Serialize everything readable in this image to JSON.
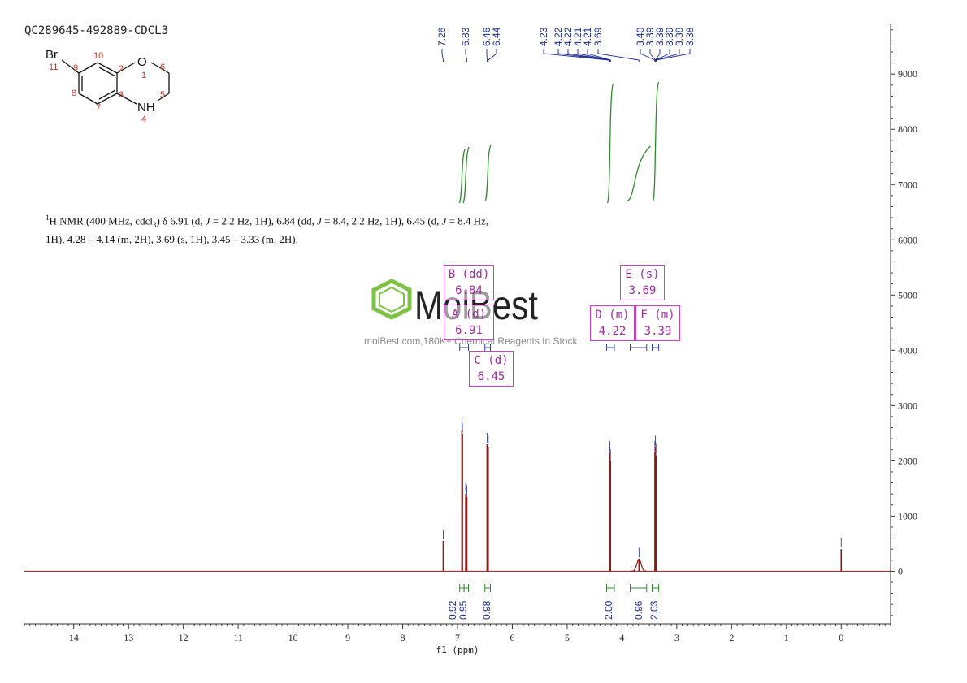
{
  "sample_id": "QC289645-492889-CDCL3",
  "nmr_summary": {
    "lead": "H NMR (400 MHz, cdcl",
    "sup": "1",
    "sub": "3",
    "text_a": ") δ 6.91 (d, ",
    "j1": "J",
    "text_b": " = 2.2 Hz, 1H), 6.84 (dd, ",
    "j2": "J",
    "text_c": " = 8.4, 2.2 Hz, 1H), 6.45 (d, ",
    "j3": "J",
    "text_d": " = 8.4 Hz, 1H), 4.28 – 4.14 (m, 2H), 3.69 (s, 1H), 3.45 – 3.33 (m, 2H)."
  },
  "watermark": {
    "brand": "MolBest",
    "tagline": "molBest.com,180K+ Chemical Reagents In Stock."
  },
  "structure": {
    "atoms": [
      "Br",
      "O",
      "NH"
    ],
    "numbers": [
      "1",
      "2",
      "3",
      "4",
      "5",
      "6",
      "7",
      "8",
      "9",
      "10",
      "11"
    ]
  },
  "multiplet_boxes": [
    {
      "label": "B (dd)",
      "value": "6.84"
    },
    {
      "label": "A (d)",
      "value": "6.91"
    },
    {
      "label": "C (d)",
      "value": "6.45"
    },
    {
      "label": "D (m)",
      "value": "4.22"
    },
    {
      "label": "E (s)",
      "value": "3.69"
    },
    {
      "label": "F (m)",
      "value": "3.39"
    }
  ],
  "colors": {
    "spectrum": "#8b1a1a",
    "peak_labels": "#1a2a8a",
    "integrals": "#2e8b2e",
    "boxes": "#d13ad1",
    "axis": "#333333",
    "watermark": "#7dc242"
  },
  "chart_data": {
    "type": "line",
    "xlabel": "f1 (ppm)",
    "x_ticks": [
      14,
      13,
      12,
      11,
      10,
      9,
      8,
      7,
      6,
      5,
      4,
      3,
      2,
      1,
      0
    ],
    "xlim": [
      14.9,
      -0.9
    ],
    "y_ticks": [
      9000,
      8000,
      7000,
      6000,
      5000,
      4000,
      3000,
      2000,
      1000,
      0
    ],
    "ylim": [
      -950,
      9900
    ],
    "peak_labels": [
      "7.26",
      "6.83",
      "6.46",
      "6.44",
      "4.23",
      "4.22",
      "4.22",
      "4.21",
      "4.21",
      "3.69",
      "3.40",
      "3.39",
      "3.39",
      "3.39",
      "3.38",
      "3.38"
    ],
    "peaks": [
      {
        "ppm": 7.26,
        "height": 550
      },
      {
        "ppm": 6.92,
        "height": 2550
      },
      {
        "ppm": 6.91,
        "height": 2480
      },
      {
        "ppm": 6.85,
        "height": 1400
      },
      {
        "ppm": 6.84,
        "height": 1380
      },
      {
        "ppm": 6.83,
        "height": 1350
      },
      {
        "ppm": 6.46,
        "height": 2300
      },
      {
        "ppm": 6.44,
        "height": 2250
      },
      {
        "ppm": 4.23,
        "height": 2050
      },
      {
        "ppm": 4.22,
        "height": 2150
      },
      {
        "ppm": 4.21,
        "height": 2000
      },
      {
        "ppm": 3.69,
        "height": 220
      },
      {
        "ppm": 3.4,
        "height": 2150
      },
      {
        "ppm": 3.39,
        "height": 2250
      },
      {
        "ppm": 3.38,
        "height": 2100
      },
      {
        "ppm": 0.0,
        "height": 400
      }
    ],
    "integrals": [
      {
        "value": "0.92",
        "from": 6.96,
        "to": 6.88
      },
      {
        "value": "0.95",
        "from": 6.88,
        "to": 6.8
      },
      {
        "value": "0.98",
        "from": 6.5,
        "to": 6.4
      },
      {
        "value": "2.00",
        "from": 4.28,
        "to": 4.14
      },
      {
        "value": "0.96",
        "from": 3.85,
        "to": 3.55
      },
      {
        "value": "2.03",
        "from": 3.45,
        "to": 3.33
      }
    ]
  }
}
